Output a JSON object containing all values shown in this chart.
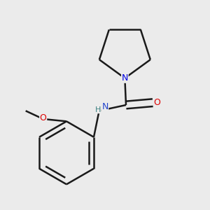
{
  "background_color": "#ebebeb",
  "atom_colors": {
    "C": "#1a1a1a",
    "N_pyrr": "#0000e0",
    "N_NH": "#3a8080",
    "O": "#dd0000"
  },
  "bond_color": "#1a1a1a",
  "bond_width": 1.8,
  "figsize": [
    3.0,
    3.0
  ],
  "dpi": 100,
  "xlim": [
    0.05,
    0.95
  ],
  "ylim": [
    0.05,
    0.95
  ]
}
